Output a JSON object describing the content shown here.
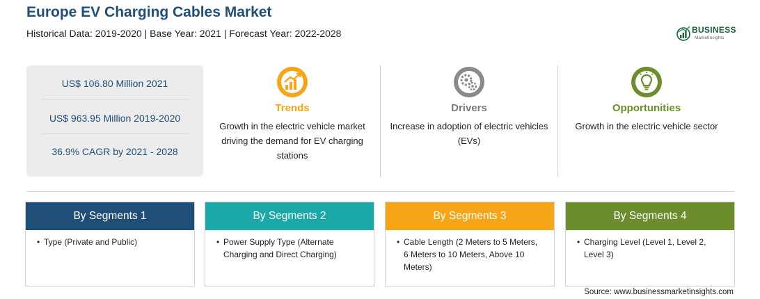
{
  "header": {
    "title": "Europe EV Charging Cables Market",
    "subtitle": "Historical Data: 2019-2020 | Base Year: 2021 | Forecast Year: 2022-2028"
  },
  "logo": {
    "name": "BUSINESS",
    "tagline": "MarketInsights",
    "color": "#1d5e3a"
  },
  "stats": [
    {
      "text": "US$ 106.80 Million 2021"
    },
    {
      "text": "US$ 963.95 Million 2019-2020"
    },
    {
      "text": "36.9% CAGR by 2021 - 2028"
    }
  ],
  "factors": [
    {
      "label": "Trends",
      "color": "#f5a516",
      "icon": "growth-chart-icon",
      "text": "Growth in the electric vehicle market driving the demand for EV charging stations"
    },
    {
      "label": "Drivers",
      "color": "#7a7a7a",
      "icon": "gears-icon",
      "text": "Increase in adoption of electric vehicles (EVs)"
    },
    {
      "label": "Opportunities",
      "color": "#6c8d2c",
      "icon": "lightbulb-icon",
      "text": "Growth in the electric vehicle sector"
    }
  ],
  "segments": [
    {
      "title": "By Segments 1",
      "color": "#1f4e79",
      "items": [
        "Type (Private and Public)"
      ]
    },
    {
      "title": "By Segments 2",
      "color": "#1aa8a8",
      "items": [
        "Power Supply Type (Alternate Charging and Direct Charging)"
      ]
    },
    {
      "title": "By Segments 3",
      "color": "#f5a516",
      "items": [
        "Cable Length (2 Meters to 5 Meters, 6 Meters to 10 Meters, Above 10 Meters)"
      ]
    },
    {
      "title": "By Segments 4",
      "color": "#6c8d2c",
      "items": [
        "Charging Level (Level 1, Level 2, Level 3)"
      ]
    }
  ],
  "source": "Source: www.businessmarketinsights.com"
}
